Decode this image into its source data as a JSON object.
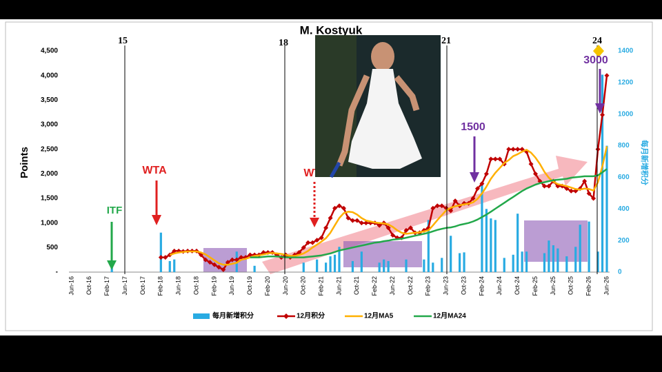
{
  "chart_data": {
    "type": "combo",
    "title": "M. Kostyuk",
    "y_label": "Points",
    "y2_label": "每月新增积分",
    "ylim": [
      0,
      4500
    ],
    "yticks": [
      {
        "value": 0,
        "label": "-"
      },
      500,
      {
        "value": 1000,
        "label": "1,000"
      },
      {
        "value": 1500,
        "label": "1,500"
      },
      {
        "value": 2000,
        "label": "2,000"
      },
      {
        "value": 2500,
        "label": "2,500"
      },
      {
        "value": 3000,
        "label": "3,000"
      },
      {
        "value": 3500,
        "label": "3,500"
      },
      {
        "value": 4000,
        "label": "4,000"
      },
      {
        "value": 4500,
        "label": "4,500"
      }
    ],
    "y2lim": [
      0,
      1400
    ],
    "y2ticks": [
      0,
      200,
      400,
      600,
      800,
      1000,
      1200,
      1400
    ],
    "grid": false,
    "legend": "bottom",
    "markers": [
      "15",
      "18",
      "21",
      "24"
    ],
    "annotations": [
      "ITF",
      "WTA",
      "WTA",
      "1500",
      "3000"
    ],
    "categories": [
      "Jun-16",
      null,
      null,
      null,
      "Oct-16",
      null,
      null,
      null,
      "Feb-17",
      null,
      null,
      null,
      "Jun-17",
      null,
      null,
      null,
      "Oct-17",
      null,
      null,
      null,
      "Feb-18",
      null,
      null,
      null,
      "Jun-18",
      null,
      null,
      null,
      "Oct-18",
      null,
      null,
      null,
      "Feb-19",
      null,
      null,
      null,
      "Jun-19",
      null,
      null,
      null,
      "Oct-19",
      null,
      null,
      null,
      "Feb-20",
      null,
      null,
      null,
      "Jun-20",
      null,
      null,
      null,
      "Oct-20",
      null,
      null,
      null,
      "Feb-21",
      null,
      null,
      null,
      "Jun-21",
      null,
      null,
      null,
      "Oct-21",
      null,
      null,
      null,
      "Feb-22",
      null,
      null,
      null,
      "Jun-22",
      null,
      null,
      null,
      "Oct-22",
      null,
      null,
      null,
      "Feb-23",
      null,
      null,
      null,
      "Jun-23",
      null,
      null,
      null,
      "Oct-23",
      null,
      null,
      null,
      "Feb-24",
      null,
      null,
      null,
      "Jun-24",
      null,
      null,
      null,
      "Oct-24",
      null,
      null,
      null,
      "Feb-25",
      null,
      null,
      null,
      "Jun-25",
      null,
      null,
      null,
      "Oct-25",
      null,
      null,
      null,
      "Feb-26",
      null,
      null,
      null,
      "Jun-26"
    ],
    "series": [
      {
        "name": "每月新增积分",
        "type": "bar",
        "axis": "y2",
        "color": "#29abe2",
        "values": [
          null,
          null,
          null,
          null,
          null,
          null,
          null,
          null,
          null,
          50,
          null,
          null,
          null,
          null,
          null,
          null,
          null,
          null,
          null,
          null,
          250,
          null,
          70,
          80,
          null,
          null,
          null,
          null,
          null,
          null,
          null,
          null,
          null,
          null,
          null,
          null,
          null,
          130,
          null,
          null,
          null,
          40,
          null,
          null,
          null,
          null,
          null,
          null,
          null,
          null,
          null,
          null,
          60,
          null,
          null,
          80,
          null,
          60,
          100,
          110,
          160,
          null,
          null,
          70,
          null,
          130,
          null,
          null,
          null,
          60,
          80,
          70,
          null,
          null,
          null,
          80,
          null,
          null,
          null,
          80,
          330,
          60,
          null,
          90,
          null,
          230,
          null,
          120,
          125,
          null,
          null,
          null,
          570,
          400,
          340,
          330,
          null,
          90,
          null,
          110,
          370,
          130,
          130,
          null,
          null,
          null,
          120,
          200,
          170,
          150,
          null,
          100,
          null,
          160,
          300,
          null,
          320,
          null,
          130,
          1250,
          800
        ]
      },
      {
        "name": "12月积分",
        "type": "line",
        "marker": "diamond",
        "color": "#c00000",
        "values": [
          null,
          null,
          null,
          null,
          null,
          null,
          null,
          null,
          null,
          null,
          null,
          null,
          null,
          null,
          null,
          null,
          null,
          null,
          null,
          null,
          300,
          300,
          350,
          430,
          430,
          420,
          430,
          430,
          430,
          350,
          250,
          200,
          150,
          100,
          50,
          200,
          250,
          250,
          300,
          300,
          350,
          350,
          350,
          400,
          400,
          400,
          350,
          300,
          350,
          300,
          350,
          400,
          500,
          600,
          600,
          650,
          700,
          900,
          1100,
          1300,
          1350,
          1300,
          1100,
          1050,
          1050,
          1000,
          1000,
          1000,
          1000,
          950,
          1000,
          900,
          750,
          700,
          700,
          850,
          900,
          800,
          800,
          850,
          900,
          1300,
          1350,
          1350,
          1300,
          1250,
          1450,
          1350,
          1400,
          1400,
          1500,
          1700,
          1800,
          2000,
          2300,
          2300,
          2300,
          2200,
          2500,
          2500,
          2500,
          2500,
          2450,
          2200,
          2000,
          1850,
          1750,
          1750,
          1850,
          1750,
          1750,
          1700,
          1650,
          1650,
          1700,
          1850,
          1600,
          1500,
          2500,
          3200,
          4000
        ]
      },
      {
        "name": "12月MA5",
        "type": "line",
        "color": "#ffb000",
        "values": [
          null,
          null,
          null,
          null,
          null,
          null,
          null,
          null,
          null,
          null,
          null,
          null,
          null,
          null,
          null,
          null,
          null,
          null,
          null,
          null,
          null,
          null,
          350,
          380,
          400,
          410,
          420,
          420,
          420,
          400,
          360,
          300,
          240,
          180,
          150,
          150,
          170,
          190,
          250,
          270,
          300,
          330,
          340,
          360,
          380,
          390,
          380,
          370,
          350,
          330,
          330,
          350,
          380,
          430,
          500,
          560,
          620,
          690,
          800,
          950,
          1100,
          1200,
          1230,
          1220,
          1170,
          1100,
          1050,
          1030,
          1010,
          1000,
          990,
          970,
          920,
          850,
          800,
          780,
          790,
          800,
          810,
          830,
          850,
          950,
          1060,
          1160,
          1260,
          1310,
          1340,
          1360,
          1380,
          1390,
          1420,
          1490,
          1600,
          1740,
          1900,
          2020,
          2120,
          2220,
          2280,
          2360,
          2400,
          2450,
          2490,
          2430,
          2330,
          2200,
          2040,
          1920,
          1840,
          1790,
          1770,
          1750,
          1720,
          1690,
          1680,
          1700,
          1690,
          1660,
          1830,
          2150,
          2560
        ]
      },
      {
        "name": "12月MA24",
        "type": "line",
        "color": "#22a84a",
        "values": [
          null,
          null,
          null,
          null,
          null,
          null,
          null,
          null,
          null,
          null,
          null,
          null,
          null,
          null,
          null,
          null,
          null,
          null,
          null,
          null,
          null,
          null,
          null,
          null,
          null,
          null,
          null,
          null,
          null,
          null,
          null,
          null,
          null,
          null,
          null,
          null,
          null,
          null,
          null,
          null,
          300,
          300,
          300,
          310,
          320,
          320,
          320,
          310,
          300,
          300,
          300,
          300,
          300,
          310,
          320,
          330,
          340,
          360,
          380,
          410,
          440,
          460,
          480,
          500,
          520,
          540,
          560,
          580,
          600,
          610,
          630,
          640,
          660,
          670,
          680,
          700,
          720,
          740,
          760,
          780,
          800,
          830,
          860,
          880,
          900,
          910,
          930,
          960,
          980,
          1000,
          1030,
          1070,
          1120,
          1170,
          1230,
          1290,
          1350,
          1410,
          1470,
          1530,
          1590,
          1650,
          1700,
          1740,
          1780,
          1810,
          1830,
          1850,
          1870,
          1880,
          1890,
          1900,
          1920,
          1930,
          1940,
          1950,
          1950,
          1950,
          1970,
          2030,
          2100
        ]
      }
    ]
  }
}
